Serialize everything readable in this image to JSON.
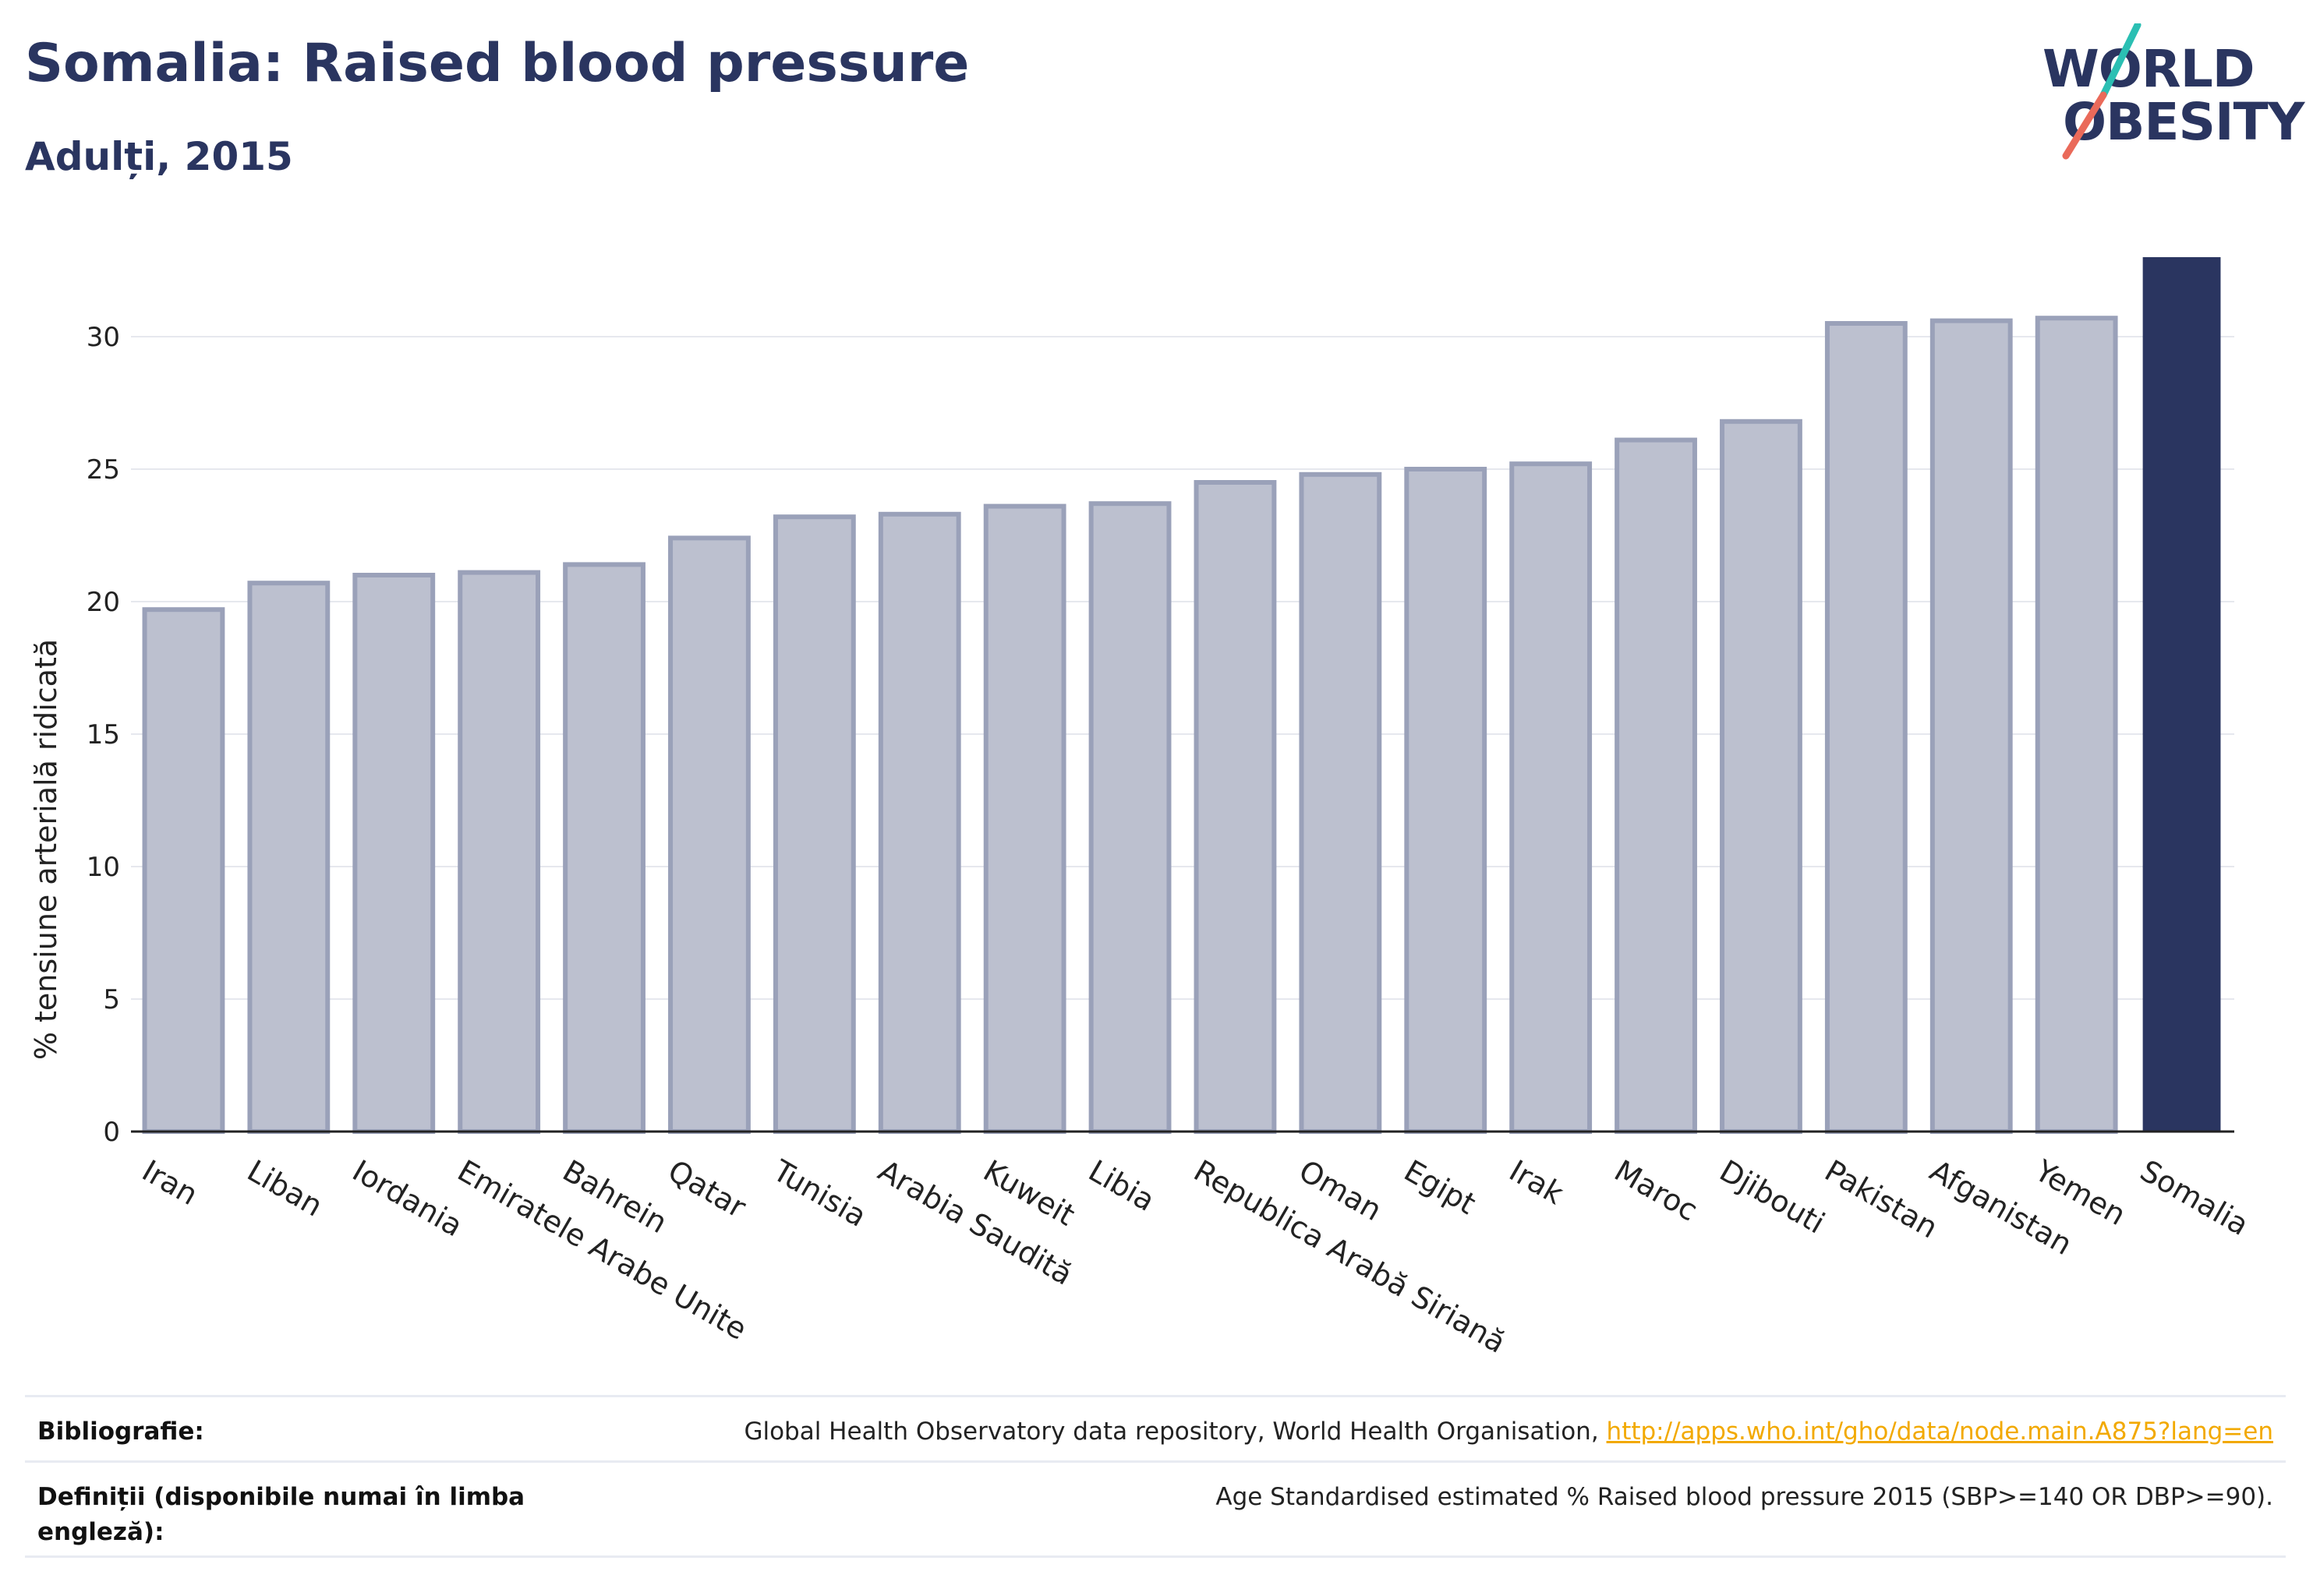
{
  "header": {
    "title": "Somalia: Raised blood pressure",
    "subtitle": "Adulți, 2015"
  },
  "logo": {
    "line1": "WORLD",
    "line2": "OBESITY",
    "colors": {
      "teal": "#2bbfb3",
      "coral": "#ea6a5a",
      "navy": "#2a3560"
    }
  },
  "chart_data": {
    "type": "bar",
    "ylabel": "% tensiune arterială ridicată",
    "xlabel": "",
    "ylim": [
      0,
      33
    ],
    "yticks": [
      0,
      5,
      10,
      15,
      20,
      25,
      30
    ],
    "grid": true,
    "categories": [
      "Iran",
      "Liban",
      "Iordania",
      "Emiratele Arabe Unite",
      "Bahrein",
      "Qatar",
      "Tunisia",
      "Arabia Saudită",
      "Kuweit",
      "Libia",
      "Republica Arabă Siriană",
      "Oman",
      "Egipt",
      "Irak",
      "Maroc",
      "Djibouti",
      "Pakistan",
      "Afganistan",
      "Yemen",
      "Somalia"
    ],
    "values": [
      19.7,
      20.7,
      21.0,
      21.1,
      21.4,
      22.4,
      23.2,
      23.3,
      23.6,
      23.7,
      24.5,
      24.8,
      25.0,
      25.2,
      26.1,
      26.8,
      30.5,
      30.6,
      30.7,
      33.0
    ],
    "highlight": "Somalia",
    "colors": {
      "bar": "#bcc0cf",
      "bar_border": "#9aa1b9",
      "highlight": "#2a3560",
      "grid": "#e6e8ee",
      "axis": "#222222"
    }
  },
  "footer": {
    "bibliography_label": "Bibliografie:",
    "bibliography_text": "Global Health Observatory data repository, World Health Organisation, ",
    "bibliography_link": "http://apps.who.int/gho/data/node.main.A875?lang=en",
    "definitions_label_line1": "Definiții (disponibile numai în limba",
    "definitions_label_line2": "engleză):",
    "definitions_text": "Age Standardised estimated % Raised blood pressure 2015 (SBP>=140 OR DBP>=90)."
  }
}
